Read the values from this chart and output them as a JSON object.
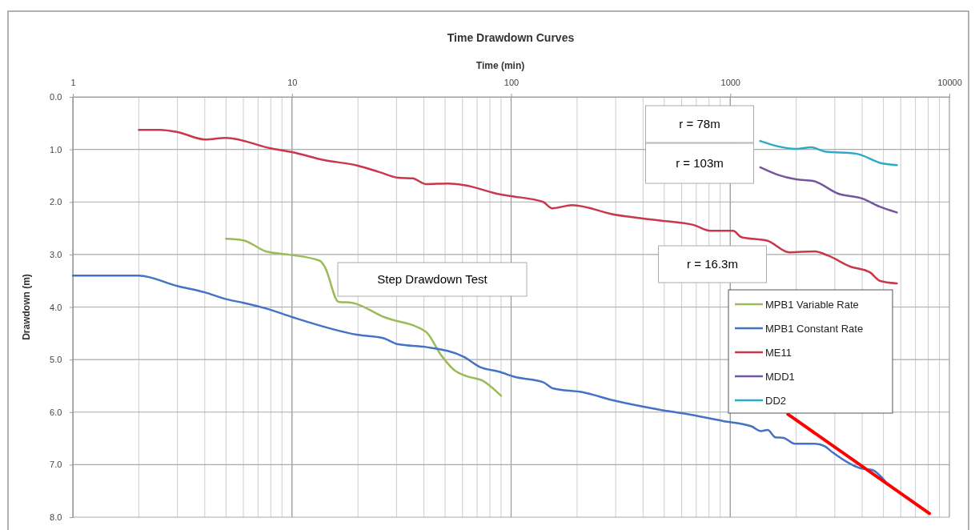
{
  "chart_data": {
    "type": "line",
    "title": "Time Drawdown Curves",
    "xlabel": "Time (min)",
    "ylabel": "Drawdown (m)",
    "log": "x",
    "grid": true,
    "legend": "right",
    "xlim": [
      1,
      10000
    ],
    "xticks": [
      1,
      10,
      100,
      1000,
      10000
    ],
    "ylim": [
      8,
      0
    ],
    "yticks": [
      {
        "value": 0,
        "label": "0.0"
      },
      {
        "value": 1,
        "label": "1.0"
      },
      {
        "value": 2,
        "label": "2.0"
      },
      {
        "value": 3,
        "label": "3.0"
      },
      {
        "value": 4,
        "label": "4.0"
      },
      {
        "value": 5,
        "label": "5.0"
      },
      {
        "value": 6,
        "label": "6.0"
      },
      {
        "value": 7,
        "label": "7.0"
      },
      {
        "value": 8,
        "label": "8.0"
      }
    ],
    "series": [
      {
        "name": "MPB1 Variable Rate",
        "color": "#9bbb59",
        "x": [
          5,
          6,
          7.6,
          9.6,
          13.4,
          14.1,
          16.3,
          18.8,
          26.3,
          40.8,
          48,
          55,
          63,
          74,
          90
        ],
        "values": [
          2.7,
          2.73,
          2.94,
          3.0,
          3.12,
          3.23,
          3.9,
          3.92,
          4.19,
          4.47,
          4.92,
          5.2,
          5.32,
          5.4,
          5.69
        ]
      },
      {
        "name": "MPB1 Constant Rate",
        "color": "#4472c4",
        "x": [
          1,
          2,
          3,
          4,
          5,
          6,
          7.8,
          10,
          20,
          26,
          30.6,
          40.8,
          61,
          72,
          88,
          104,
          140,
          156,
          211,
          295,
          470,
          660,
          930,
          1250,
          1380,
          1480,
          1610,
          1750,
          1970,
          2430,
          2700,
          2940,
          3940,
          4450,
          5100
        ],
        "values": [
          3.4,
          3.4,
          3.6,
          3.72,
          3.85,
          3.92,
          4.04,
          4.19,
          4.53,
          4.59,
          4.71,
          4.76,
          4.95,
          5.14,
          5.23,
          5.33,
          5.43,
          5.55,
          5.62,
          5.78,
          5.95,
          6.05,
          6.17,
          6.27,
          6.36,
          6.34,
          6.48,
          6.49,
          6.6,
          6.6,
          6.65,
          6.77,
          7.07,
          7.1,
          7.32
        ]
      },
      {
        "name": "ME11",
        "color": "#c8384a",
        "x": [
          2,
          2.5,
          3,
          4,
          5,
          8,
          10,
          13.9,
          20,
          25,
          30.6,
          35.5,
          40.8,
          51.5,
          61,
          90,
          100,
          140,
          154,
          190,
          295,
          470,
          683,
          810,
          1030,
          1125,
          1480,
          1860,
          2430,
          2790,
          3530,
          4340,
          4810,
          5760
        ],
        "values": [
          0.63,
          0.63,
          0.67,
          0.81,
          0.78,
          0.98,
          1.05,
          1.2,
          1.31,
          1.43,
          1.54,
          1.55,
          1.66,
          1.65,
          1.68,
          1.86,
          1.89,
          2.0,
          2.12,
          2.06,
          2.24,
          2.35,
          2.44,
          2.55,
          2.55,
          2.67,
          2.74,
          2.96,
          2.94,
          3.02,
          3.23,
          3.34,
          3.5,
          3.55
        ]
      },
      {
        "name": "MDD1",
        "color": "#7456a0",
        "x": [
          1370,
          1640,
          2000,
          2390,
          3100,
          4040,
          4810,
          5760
        ],
        "values": [
          1.34,
          1.48,
          1.57,
          1.6,
          1.84,
          1.94,
          2.09,
          2.2
        ]
      },
      {
        "name": "DD2",
        "color": "#2eaac8",
        "x": [
          1370,
          2000,
          2340,
          2700,
          3740,
          4980,
          5760
        ],
        "values": [
          0.84,
          0.99,
          0.96,
          1.04,
          1.08,
          1.27,
          1.3
        ]
      },
      {
        "type": "line",
        "color": "#ff0000",
        "x": [
          1832,
          8110
        ],
        "values": [
          6.04,
          7.93
        ]
      }
    ],
    "annotations": [
      "r = 78m",
      "r = 103m",
      "r = 16.3m",
      "Step Drawdown Test"
    ]
  }
}
